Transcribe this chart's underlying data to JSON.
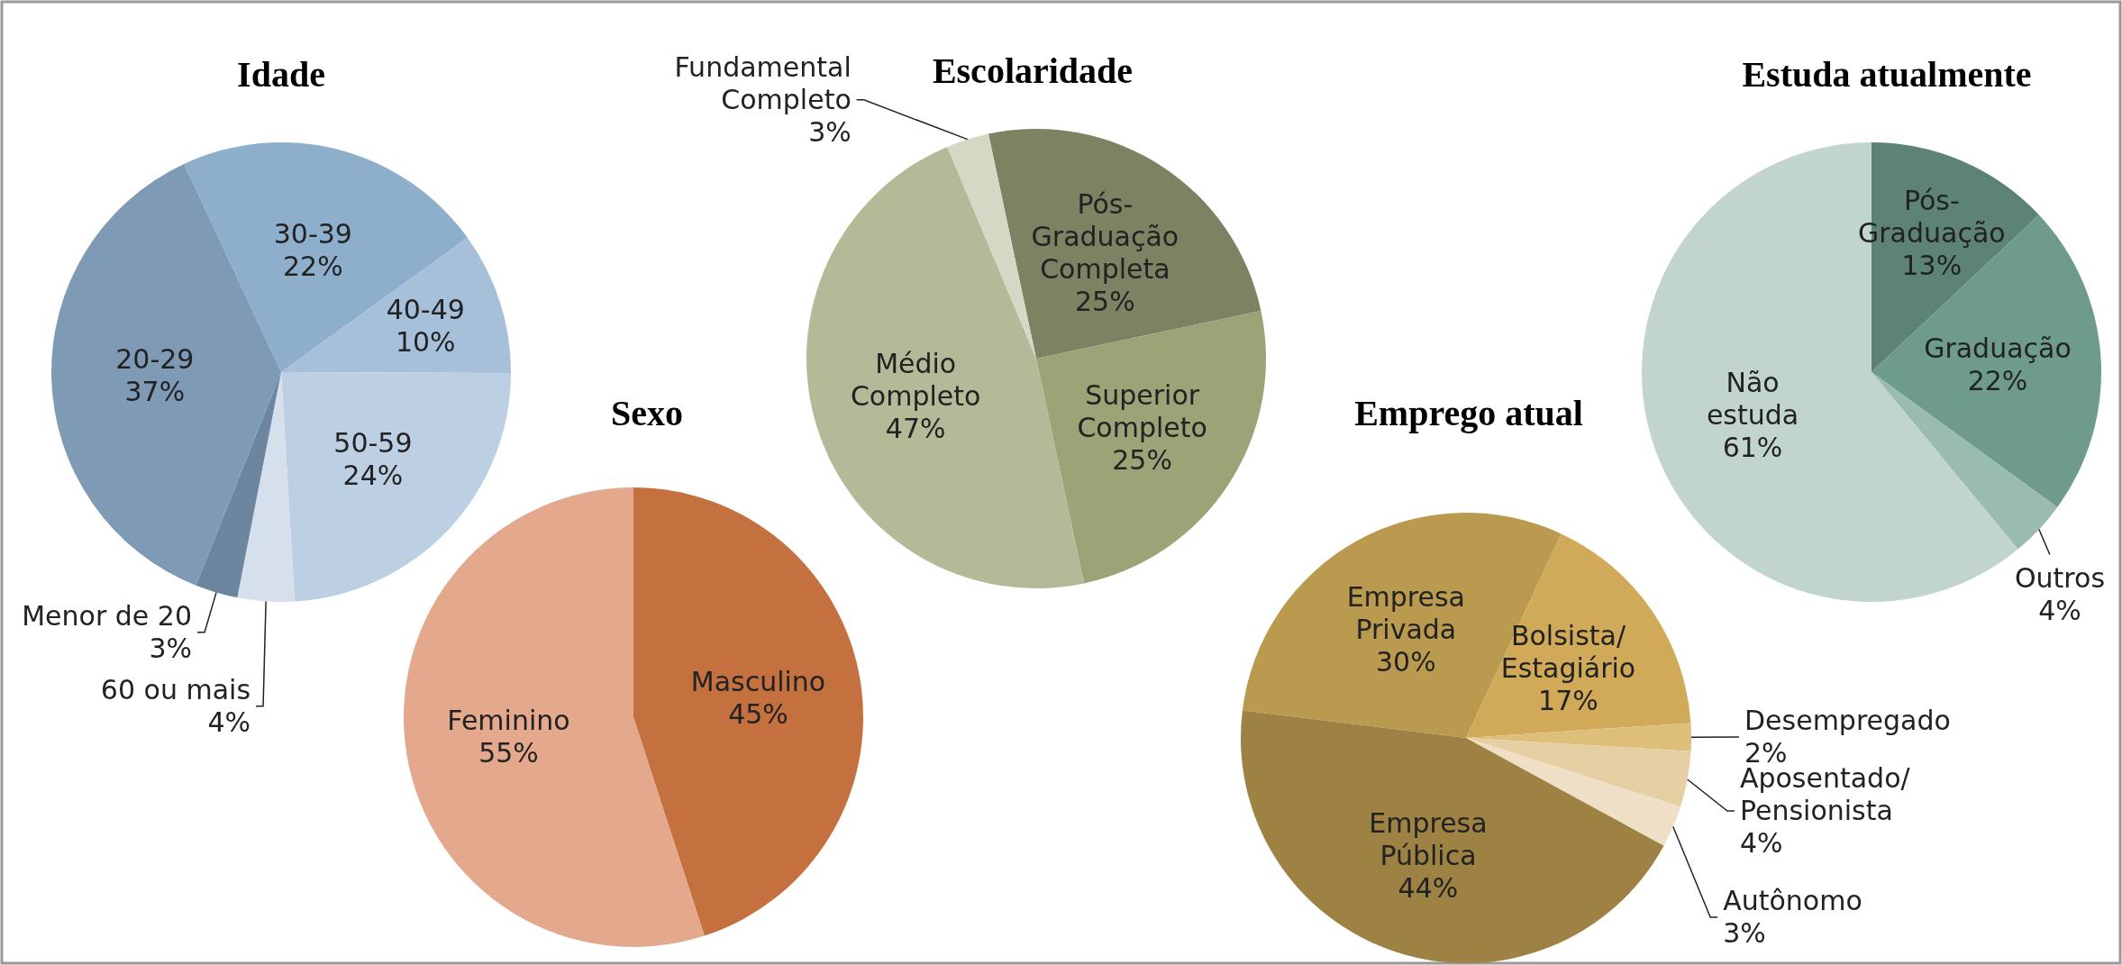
{
  "chart_data": [
    {
      "type": "pie",
      "title": "Idade",
      "categories": [
        "30-39",
        "40-49",
        "50-59",
        "60 ou mais",
        "Menor de 20",
        "20-29"
      ],
      "values": [
        22,
        10,
        24,
        4,
        3,
        37
      ],
      "value_labels": [
        "22%",
        "10%",
        "24%",
        "4%",
        "3%",
        "37%"
      ],
      "colors": [
        "#8eafcc",
        "#a6c0da",
        "#bccfe3",
        "#d6e0ec",
        "#6c86a0",
        "#7f9ab5"
      ]
    },
    {
      "type": "pie",
      "title": "Sexo",
      "categories": [
        "Masculino",
        "Feminino"
      ],
      "values": [
        45,
        55
      ],
      "value_labels": [
        "45%",
        "55%"
      ],
      "colors": [
        "#c5713f",
        "#e4a88c"
      ]
    },
    {
      "type": "pie",
      "title": "Escolaridade",
      "categories": [
        "Pós-\nGraduação\nCompleta",
        "Superior\nCompleto",
        "Médio\nCompleto",
        "Fundamental\nCompleto"
      ],
      "values": [
        25,
        25,
        47,
        3
      ],
      "value_labels": [
        "25%",
        "25%",
        "47%",
        "3%"
      ],
      "colors": [
        "#7e8262",
        "#9ba377",
        "#b4ba97",
        "#d5d8c5"
      ]
    },
    {
      "type": "pie",
      "title": "Emprego atual",
      "categories": [
        "Empresa\nPrivada",
        "Bolsista/\nEstagiário",
        "Desempregado",
        "Aposentado/\nPensionista",
        "Autônomo",
        "Empresa\nPública"
      ],
      "values": [
        30,
        17,
        2,
        4,
        3,
        44
      ],
      "value_labels": [
        "30%",
        "17%",
        "2%",
        "4%",
        "3%",
        "44%"
      ],
      "colors": [
        "#b99a4e",
        "#d0aa58",
        "#ddbf7a",
        "#e6cfa2",
        "#eedfc6",
        "#9d8243"
      ]
    },
    {
      "type": "pie",
      "title": "Estuda atualmente",
      "categories": [
        "Pós-\nGraduação",
        "Graduação",
        "Outros",
        "Não\nestuda"
      ],
      "values": [
        13,
        22,
        4,
        61
      ],
      "value_labels": [
        "13%",
        "22%",
        "4%",
        "61%"
      ],
      "colors": [
        "#5d8276",
        "#6f9b8d",
        "#9abbb1",
        "#c2d4cf"
      ]
    }
  ]
}
